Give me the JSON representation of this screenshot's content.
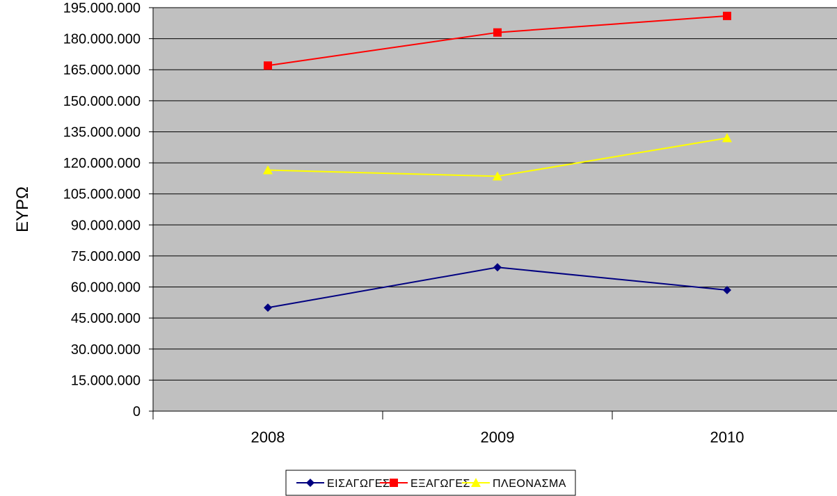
{
  "chart_data": {
    "type": "line",
    "categories": [
      "2008",
      "2009",
      "2010"
    ],
    "ylabel": "ΕΥΡΩ",
    "ylim": [
      0,
      195000000
    ],
    "y_tick_labels": [
      "0",
      "15.000.000",
      "30.000.000",
      "45.000.000",
      "60.000.000",
      "75.000.000",
      "90.000.000",
      "105.000.000",
      "120.000.000",
      "135.000.000",
      "150.000.000",
      "165.000.000",
      "180.000.000",
      "195.000.000"
    ],
    "grid": true,
    "legend": "bottom",
    "plot_background": "#c0c0c0",
    "series": [
      {
        "name": "ΕΙΣΑΓΩΓΕΣ",
        "values": [
          50000000,
          69500000,
          58500000
        ],
        "color": "#000080",
        "marker": "diamond"
      },
      {
        "name": "ΕΞΑΓΩΓΕΣ",
        "values": [
          167000000,
          183000000,
          191000000
        ],
        "color": "#ff0000",
        "marker": "square"
      },
      {
        "name": "ΠΛΕΟΝΑΣΜΑ",
        "values": [
          116500000,
          113500000,
          132000000
        ],
        "color": "#ffff00",
        "marker": "triangle"
      }
    ]
  }
}
